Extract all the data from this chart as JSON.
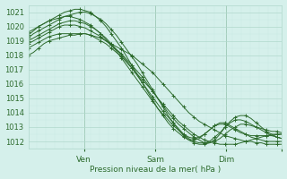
{
  "xlabel": "Pression niveau de la mer( hPa )",
  "ylim": [
    1011.5,
    1021.5
  ],
  "xlim": [
    0,
    100
  ],
  "bg_color": "#d5f0eb",
  "grid_color_major": "#b0d8cc",
  "grid_color_minor": "#c8eae3",
  "line_color": "#2d6b2d",
  "marker": "+",
  "ytick_positions": [
    1012,
    1013,
    1014,
    1015,
    1016,
    1017,
    1018,
    1019,
    1020,
    1021
  ],
  "xtick_major": [
    22,
    50,
    78,
    100
  ],
  "xtick_labels": [
    "Ven",
    "Sam",
    "Dim",
    ""
  ],
  "vlines": [
    22,
    50,
    78
  ],
  "series": [
    [
      1018.0,
      1018.2,
      1018.5,
      1018.8,
      1019.0,
      1019.1,
      1019.2,
      1019.3,
      1019.4,
      1019.4,
      1019.5,
      1019.5,
      1019.4,
      1019.3,
      1019.2,
      1019.0,
      1018.8,
      1018.6,
      1018.4,
      1018.2,
      1018.0,
      1017.7,
      1017.4,
      1017.1,
      1016.8,
      1016.4,
      1016.0,
      1015.6,
      1015.2,
      1014.8,
      1014.4,
      1014.0,
      1013.7,
      1013.4,
      1013.2,
      1013.0,
      1012.8,
      1012.6,
      1012.4,
      1012.3,
      1012.2,
      1012.1,
      1012.0,
      1012.0,
      1011.9,
      1011.9,
      1011.8,
      1011.8,
      1011.8,
      1011.8
    ],
    [
      1018.5,
      1018.7,
      1018.9,
      1019.1,
      1019.3,
      1019.4,
      1019.5,
      1019.5,
      1019.5,
      1019.5,
      1019.5,
      1019.5,
      1019.4,
      1019.2,
      1019.0,
      1018.8,
      1018.5,
      1018.2,
      1017.9,
      1017.5,
      1017.1,
      1016.7,
      1016.3,
      1015.9,
      1015.5,
      1015.0,
      1014.6,
      1014.2,
      1013.8,
      1013.4,
      1013.1,
      1012.8,
      1012.5,
      1012.3,
      1012.1,
      1012.0,
      1011.9,
      1011.8,
      1011.8,
      1011.8,
      1011.8,
      1011.9,
      1012.0,
      1012.1,
      1012.2,
      1012.3,
      1012.4,
      1012.5,
      1012.5,
      1012.5
    ],
    [
      1018.8,
      1019.0,
      1019.2,
      1019.4,
      1019.6,
      1019.8,
      1020.0,
      1020.1,
      1020.1,
      1020.1,
      1020.0,
      1019.9,
      1019.7,
      1019.5,
      1019.3,
      1019.0,
      1018.7,
      1018.4,
      1018.1,
      1017.7,
      1017.3,
      1016.9,
      1016.5,
      1016.0,
      1015.5,
      1015.0,
      1014.5,
      1014.0,
      1013.6,
      1013.2,
      1012.9,
      1012.6,
      1012.3,
      1012.1,
      1011.9,
      1011.9,
      1012.0,
      1012.2,
      1012.5,
      1012.8,
      1013.0,
      1013.2,
      1013.2,
      1013.1,
      1013.0,
      1012.9,
      1012.8,
      1012.7,
      1012.7,
      1012.6
    ],
    [
      1019.0,
      1019.2,
      1019.4,
      1019.6,
      1019.8,
      1020.0,
      1020.2,
      1020.3,
      1020.4,
      1020.4,
      1020.3,
      1020.2,
      1020.0,
      1019.8,
      1019.5,
      1019.2,
      1018.8,
      1018.4,
      1018.0,
      1017.6,
      1017.1,
      1016.6,
      1016.1,
      1015.6,
      1015.1,
      1014.6,
      1014.1,
      1013.7,
      1013.3,
      1012.9,
      1012.5,
      1012.2,
      1012.0,
      1011.9,
      1011.9,
      1012.0,
      1012.3,
      1012.6,
      1013.0,
      1013.3,
      1013.5,
      1013.5,
      1013.4,
      1013.2,
      1013.0,
      1012.8,
      1012.6,
      1012.4,
      1012.3,
      1012.2
    ],
    [
      1019.2,
      1019.5,
      1019.7,
      1019.9,
      1020.1,
      1020.3,
      1020.5,
      1020.7,
      1020.8,
      1020.9,
      1021.0,
      1021.0,
      1020.9,
      1020.7,
      1020.5,
      1020.2,
      1019.8,
      1019.4,
      1018.9,
      1018.4,
      1017.9,
      1017.4,
      1016.8,
      1016.2,
      1015.6,
      1015.0,
      1014.4,
      1013.8,
      1013.3,
      1012.8,
      1012.4,
      1012.1,
      1011.9,
      1011.8,
      1011.8,
      1011.9,
      1012.1,
      1012.5,
      1013.0,
      1013.4,
      1013.7,
      1013.8,
      1013.8,
      1013.6,
      1013.3,
      1013.0,
      1012.7,
      1012.5,
      1012.3,
      1012.2
    ],
    [
      1019.4,
      1019.7,
      1020.0,
      1020.2,
      1020.4,
      1020.6,
      1020.8,
      1021.0,
      1021.1,
      1021.2,
      1021.2,
      1021.1,
      1021.0,
      1020.7,
      1020.4,
      1020.0,
      1019.5,
      1019.0,
      1018.5,
      1017.9,
      1017.3,
      1016.7,
      1016.1,
      1015.5,
      1014.9,
      1014.3,
      1013.8,
      1013.3,
      1012.9,
      1012.6,
      1012.3,
      1012.1,
      1012.1,
      1012.2,
      1012.5,
      1012.8,
      1013.1,
      1013.3,
      1013.3,
      1013.1,
      1012.9,
      1012.7,
      1012.5,
      1012.3,
      1012.2,
      1012.1,
      1012.0,
      1012.0,
      1012.0,
      1012.0
    ],
    [
      1019.6,
      1019.8,
      1020.0,
      1020.2,
      1020.4,
      1020.5,
      1020.6,
      1020.7,
      1020.7,
      1020.6,
      1020.5,
      1020.3,
      1020.1,
      1019.8,
      1019.5,
      1019.1,
      1018.7,
      1018.3,
      1017.8,
      1017.3,
      1016.8,
      1016.3,
      1015.8,
      1015.3,
      1014.8,
      1014.3,
      1013.9,
      1013.5,
      1013.1,
      1012.8,
      1012.5,
      1012.3,
      1012.2,
      1012.3,
      1012.5,
      1012.8,
      1013.1,
      1013.2,
      1013.2,
      1013.0,
      1012.8,
      1012.6,
      1012.5,
      1012.4,
      1012.4,
      1012.4,
      1012.4,
      1012.4,
      1012.5,
      1012.5
    ]
  ]
}
